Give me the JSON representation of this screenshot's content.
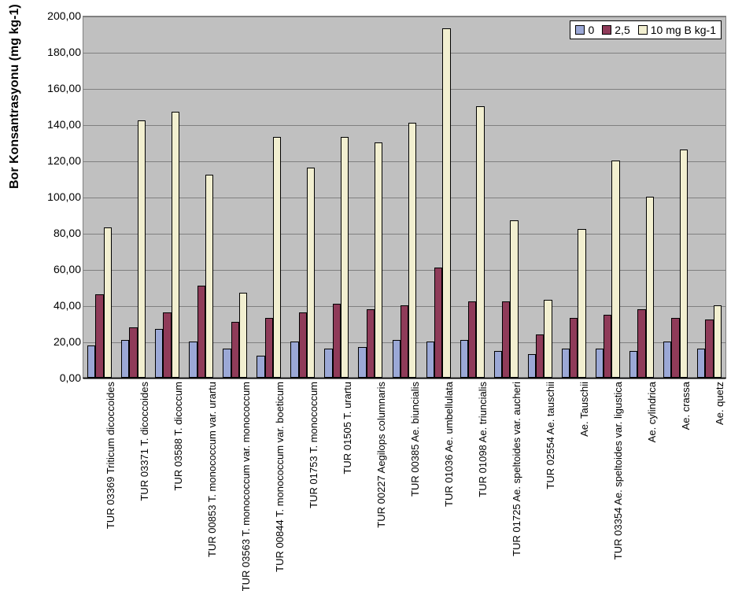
{
  "chart": {
    "type": "bar",
    "y_axis_title": "Bor Konsantrasyonu (mg kg-1)",
    "y_axis_title_fontsize": 16,
    "y_axis_title_weight": "bold",
    "background_color": "#ffffff",
    "plot_background_color": "#c0c0c0",
    "grid_color": "#808080",
    "x_label_fontsize": 13,
    "y_label_fontsize": 14,
    "x_label_rotation": -90,
    "ylim": [
      0,
      200
    ],
    "ytick_step": 20,
    "yticks": [
      "0,00",
      "20,00",
      "40,00",
      "60,00",
      "80,00",
      "100,00",
      "120,00",
      "140,00",
      "160,00",
      "180,00",
      "200,00"
    ],
    "legend": {
      "position": "upper-right",
      "items": [
        {
          "label": "0",
          "color": "#9ba8d6",
          "border": "#000000"
        },
        {
          "label": "2,5",
          "color": "#8f3b59",
          "border": "#000000"
        },
        {
          "label": "10 mg B kg-1",
          "color": "#f2efd0",
          "border": "#000000"
        }
      ]
    },
    "series_colors": [
      "#9ba8d6",
      "#8f3b59",
      "#f2efd0"
    ],
    "bar_border_color": "#000000",
    "bar_group_width_ratio": 0.72,
    "categories": [
      "TUR 03369 Triticum dicoccoides",
      "TUR 03371 T. dicoccoides",
      "TUR 03588 T. dicoccum",
      "TUR 00853 T. monococcum var. urartu",
      "TUR 03563 T. monococcum var. monococcum",
      "TUR 00844 T. monococcum var. boeticum",
      "TUR 01753 T. monococcum",
      "TUR 01505 T. urartu",
      "TUR 00227 Aegilops columnaris",
      "TUR 00385 Ae. biuncialis",
      "TUR 01036 Ae. umbellulata",
      "TUR 01098 Ae. triuncialis",
      "TUR 01725 Ae. speltoides var. aucheri",
      "TUR 02554 Ae. tauschii",
      "Ae. Tauschii",
      "TUR 03354 Ae. speltoides var. ligustica",
      "Ae. cylindrica",
      "Ae. crassa",
      "Ae. quetz"
    ],
    "series": [
      {
        "name": "0",
        "values": [
          18,
          21,
          27,
          20,
          16,
          12,
          20,
          16,
          17,
          21,
          20,
          21,
          15,
          13,
          16,
          16,
          15,
          20,
          16
        ]
      },
      {
        "name": "2.5",
        "values": [
          46,
          28,
          36,
          51,
          31,
          33,
          36,
          41,
          38,
          40,
          61,
          42,
          42,
          24,
          33,
          35,
          38,
          33,
          32
        ]
      },
      {
        "name": "10",
        "values": [
          83,
          142,
          147,
          112,
          47,
          133,
          116,
          133,
          130,
          141,
          193,
          150,
          87,
          43,
          82,
          120,
          100,
          126,
          40
        ]
      }
    ]
  }
}
